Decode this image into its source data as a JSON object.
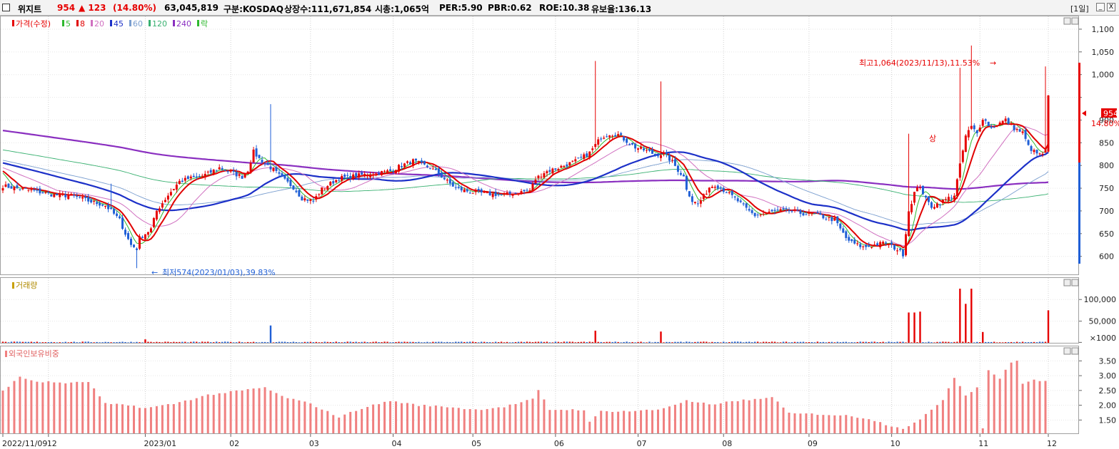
{
  "header": {
    "name": "위지트",
    "price": "954",
    "change": "▲ 123",
    "change_pct": "(14.80%)",
    "volume": "63,045,819",
    "market": "구분:KOSDAQ",
    "shares": "상장수:111,671,854",
    "mktcap": "시총:1,065억",
    "per": "PER:5.90",
    "pbr": "PBR:0.62",
    "roe": "ROE:10.38",
    "turnover": "유보율:136.13",
    "period_button": "[1일]",
    "minimize": "_",
    "close": "X"
  },
  "colors": {
    "up": "#e60000",
    "down": "#1f5fd6",
    "ma5": "#2eb82e",
    "ma8": "#e00000",
    "ma20": "#d070c0",
    "ma45": "#1c30c8",
    "ma60": "#7a9ecf",
    "ma120": "#38b070",
    "ma240": "#8a2fc0",
    "foreign": "#f08080"
  },
  "panels": {
    "price_title": "가격(수정)",
    "volume_title": "거래량",
    "foreign_title": "외국인보유비중",
    "legend": [
      {
        "label": "5",
        "color": "#2eb82e"
      },
      {
        "label": "8",
        "color": "#e00000"
      },
      {
        "label": "20",
        "color": "#d070c0"
      },
      {
        "label": "45",
        "color": "#1c30c8"
      },
      {
        "label": "60",
        "color": "#7a9ecf"
      },
      {
        "label": "120",
        "color": "#38b070"
      },
      {
        "label": "240",
        "color": "#8a2fc0"
      },
      {
        "label": "락",
        "color": "#2eb82e"
      }
    ]
  },
  "chart_data": {
    "type": "candlestick",
    "x_labels": [
      "2022/11/09",
      "12",
      "2023/01",
      "02",
      "03",
      "04",
      "05",
      "06",
      "07",
      "08",
      "09",
      "10",
      "11",
      "12"
    ],
    "y_ticks_price": [
      "600",
      "650",
      "700",
      "750",
      "800",
      "850",
      "900",
      "950",
      "1,000",
      "1,050",
      "1,100"
    ],
    "y_range_price": [
      565,
      1125
    ],
    "y_ticks_volume": [
      "×1000",
      "50,000",
      "100,000"
    ],
    "y_range_volume": [
      0,
      130000
    ],
    "y_ticks_foreign": [
      "1.50",
      "2.00",
      "2.50",
      "3.00",
      "3.50"
    ],
    "y_range_foreign": [
      1.05,
      3.75
    ],
    "annotations": {
      "high": "최고1,064(2023/11/13),11.53%",
      "low": "최저574(2023/01/03),39.83%",
      "upper_limit_mark": "상",
      "last_price": "954",
      "last_pct": "14.80%"
    },
    "anchors": [
      [
        0,
        755
      ],
      [
        10,
        745
      ],
      [
        18,
        735
      ],
      [
        25,
        733
      ],
      [
        30,
        722
      ],
      [
        36,
        712
      ],
      [
        38,
        700
      ],
      [
        41,
        680
      ],
      [
        43,
        650
      ],
      [
        45,
        625
      ],
      [
        47,
        617
      ],
      [
        48,
        640
      ],
      [
        52,
        660
      ],
      [
        54,
        700
      ],
      [
        58,
        735
      ],
      [
        62,
        765
      ],
      [
        66,
        772
      ],
      [
        69,
        775
      ],
      [
        72,
        782
      ],
      [
        76,
        795
      ],
      [
        80,
        785
      ],
      [
        84,
        775
      ],
      [
        86,
        790
      ],
      [
        88,
        830
      ],
      [
        90,
        815
      ],
      [
        92,
        805
      ],
      [
        95,
        790
      ],
      [
        98,
        772
      ],
      [
        102,
        752
      ],
      [
        105,
        728
      ],
      [
        109,
        722
      ],
      [
        112,
        748
      ],
      [
        118,
        772
      ],
      [
        125,
        778
      ],
      [
        130,
        782
      ],
      [
        136,
        788
      ],
      [
        140,
        800
      ],
      [
        144,
        810
      ],
      [
        147,
        802
      ],
      [
        150,
        795
      ],
      [
        153,
        782
      ],
      [
        156,
        765
      ],
      [
        159,
        750
      ],
      [
        164,
        742
      ],
      [
        170,
        738
      ],
      [
        176,
        735
      ],
      [
        182,
        742
      ],
      [
        185,
        745
      ],
      [
        187,
        770
      ],
      [
        190,
        785
      ],
      [
        195,
        795
      ],
      [
        198,
        802
      ],
      [
        202,
        812
      ],
      [
        206,
        828
      ],
      [
        208,
        845
      ],
      [
        210,
        862
      ],
      [
        213,
        870
      ],
      [
        216,
        868
      ],
      [
        218,
        858
      ],
      [
        222,
        840
      ],
      [
        226,
        832
      ],
      [
        229,
        824
      ],
      [
        232,
        826
      ],
      [
        235,
        808
      ],
      [
        237,
        790
      ],
      [
        239,
        775
      ],
      [
        240,
        750
      ],
      [
        242,
        722
      ],
      [
        244,
        715
      ],
      [
        246,
        732
      ],
      [
        248,
        752
      ],
      [
        250,
        758
      ],
      [
        254,
        742
      ],
      [
        258,
        722
      ],
      [
        261,
        704
      ],
      [
        264,
        690
      ],
      [
        268,
        695
      ],
      [
        272,
        700
      ],
      [
        276,
        700
      ],
      [
        280,
        695
      ],
      [
        285,
        692
      ],
      [
        289,
        685
      ],
      [
        292,
        680
      ],
      [
        294,
        660
      ],
      [
        296,
        640
      ],
      [
        298,
        630
      ],
      [
        302,
        620
      ],
      [
        306,
        625
      ],
      [
        310,
        630
      ],
      [
        314,
        615
      ],
      [
        316,
        605
      ],
      [
        318,
        700
      ],
      [
        320,
        740
      ],
      [
        322,
        755
      ],
      [
        324,
        725
      ],
      [
        326,
        710
      ],
      [
        328,
        715
      ],
      [
        331,
        725
      ],
      [
        334,
        735
      ],
      [
        336,
        800
      ],
      [
        338,
        865
      ],
      [
        340,
        885
      ],
      [
        342,
        870
      ],
      [
        344,
        905
      ],
      [
        347,
        882
      ],
      [
        349,
        890
      ],
      [
        352,
        900
      ],
      [
        355,
        882
      ],
      [
        358,
        872
      ],
      [
        360,
        842
      ],
      [
        362,
        830
      ],
      [
        364,
        823
      ],
      [
        366,
        830
      ],
      [
        367,
        954
      ]
    ],
    "volume_spikes": [
      [
        50,
        8000
      ],
      [
        94,
        40000
      ],
      [
        208,
        28000
      ],
      [
        231,
        26000
      ],
      [
        318,
        70000
      ],
      [
        320,
        70000
      ],
      [
        322,
        72000
      ],
      [
        336,
        125000
      ],
      [
        338,
        90000
      ],
      [
        340,
        125000
      ],
      [
        344,
        25000
      ],
      [
        367,
        75000
      ]
    ],
    "volume_base": 1800,
    "foreign_anchors": [
      [
        0,
        2.5
      ],
      [
        6,
        2.95
      ],
      [
        12,
        2.8
      ],
      [
        24,
        2.75
      ],
      [
        30,
        2.8
      ],
      [
        36,
        2.05
      ],
      [
        46,
        1.98
      ],
      [
        50,
        1.9
      ],
      [
        60,
        2.05
      ],
      [
        72,
        2.35
      ],
      [
        84,
        2.5
      ],
      [
        92,
        2.6
      ],
      [
        98,
        2.3
      ],
      [
        108,
        2.05
      ],
      [
        118,
        1.6
      ],
      [
        126,
        1.9
      ],
      [
        136,
        2.15
      ],
      [
        146,
        2.0
      ],
      [
        156,
        1.95
      ],
      [
        166,
        1.85
      ],
      [
        176,
        1.95
      ],
      [
        186,
        2.2
      ],
      [
        188,
        2.5
      ],
      [
        192,
        1.85
      ],
      [
        204,
        1.85
      ],
      [
        206,
        1.42
      ],
      [
        210,
        1.8
      ],
      [
        220,
        1.8
      ],
      [
        230,
        1.85
      ],
      [
        240,
        2.15
      ],
      [
        250,
        2.0
      ],
      [
        256,
        2.15
      ],
      [
        266,
        2.2
      ],
      [
        270,
        2.3
      ],
      [
        276,
        1.72
      ],
      [
        286,
        1.7
      ],
      [
        296,
        1.65
      ],
      [
        304,
        1.55
      ],
      [
        310,
        1.35
      ],
      [
        316,
        1.22
      ],
      [
        322,
        1.5
      ],
      [
        330,
        2.2
      ],
      [
        334,
        2.95
      ],
      [
        338,
        2.35
      ],
      [
        342,
        2.6
      ],
      [
        344,
        1.22
      ],
      [
        346,
        3.2
      ],
      [
        350,
        2.9
      ],
      [
        354,
        3.45
      ],
      [
        356,
        3.5
      ],
      [
        358,
        2.75
      ],
      [
        362,
        2.85
      ],
      [
        366,
        2.8
      ],
      [
        367,
        2.8
      ]
    ]
  }
}
